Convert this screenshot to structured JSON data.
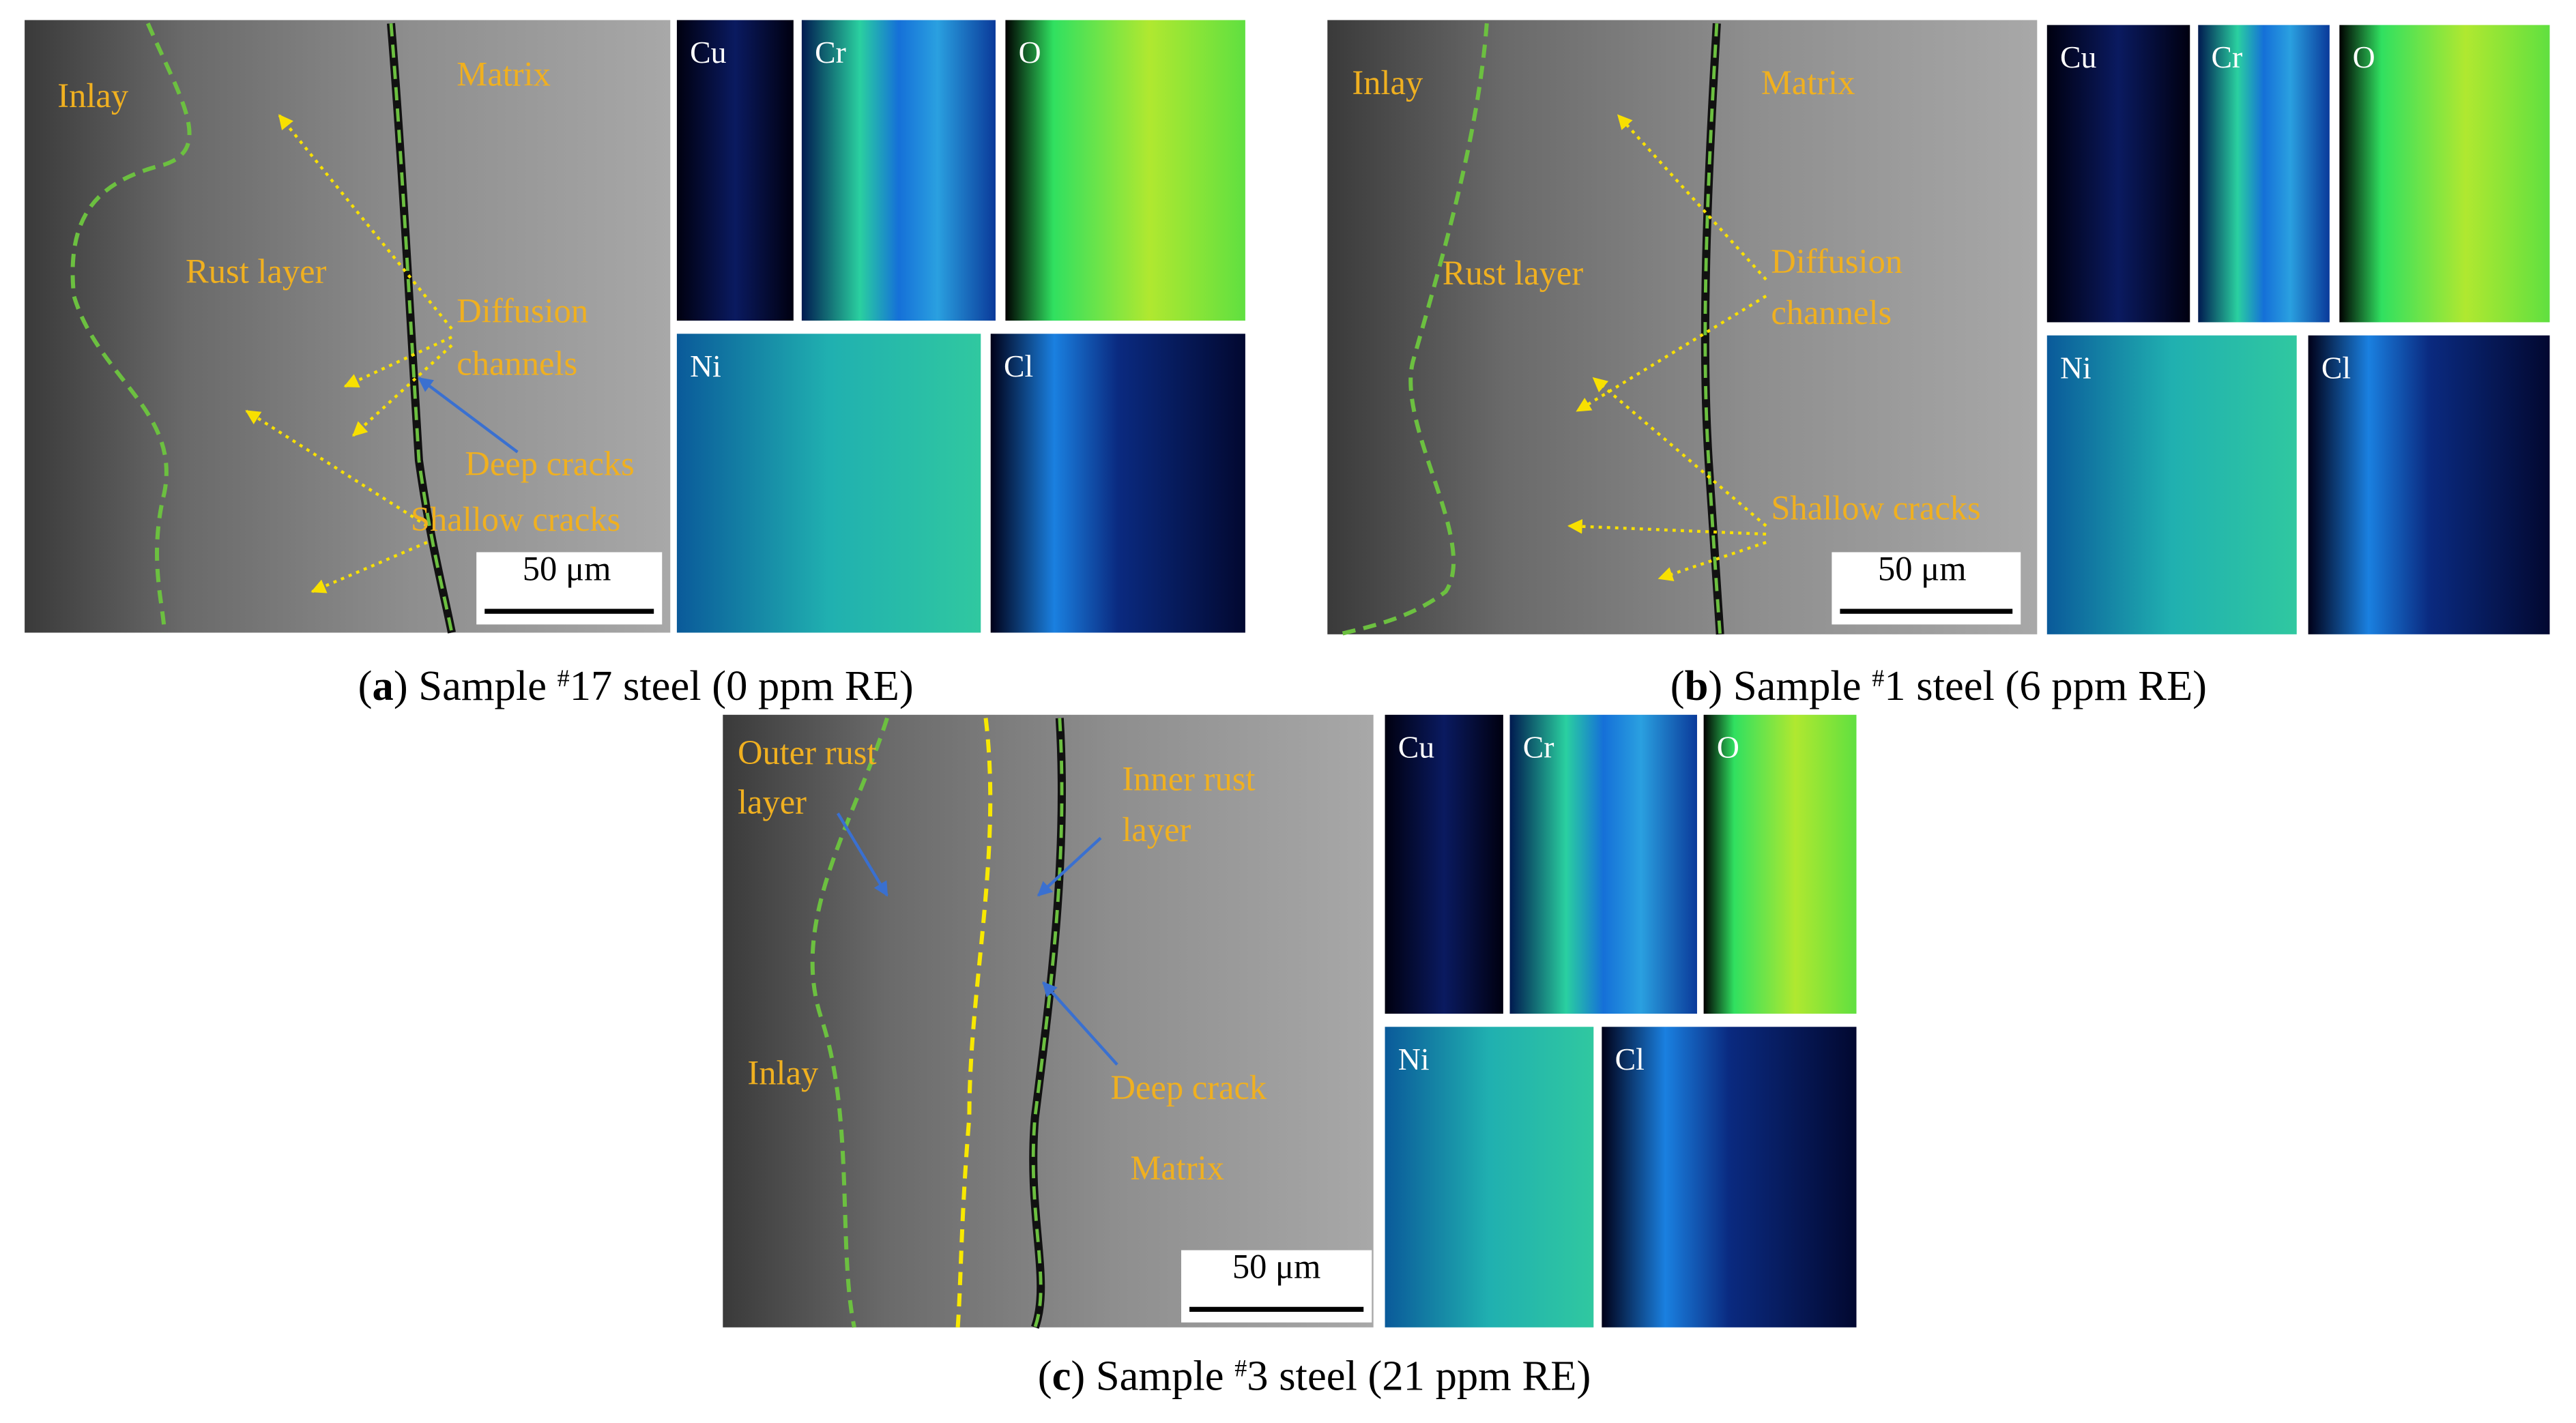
{
  "panels": [
    {
      "labels": [
        "Inlay",
        "Matrix",
        "Rust layer",
        "Diffusion",
        "channels",
        "Deep cracks",
        "Shallow cracks"
      ],
      "maps": [
        "Cu",
        "Cr",
        "O",
        "Ni",
        "Cl"
      ],
      "scale_bar": "50 μm",
      "caption": [
        "(",
        "a",
        ") Sample ",
        "#",
        "17 steel (0 ppm RE)"
      ]
    },
    {
      "labels": [
        "Inlay",
        "Matrix",
        "Rust layer",
        "Diffusion",
        "channels",
        "Shallow cracks"
      ],
      "maps": [
        "Cu",
        "Cr",
        "O",
        "Ni",
        "Cl"
      ],
      "scale_bar": "50 μm",
      "caption": [
        "(",
        "b",
        ") Sample ",
        "#",
        "1 steel (6 ppm RE)"
      ]
    },
    {
      "labels": [
        "Outer rust",
        "layer",
        "Inner rust",
        "layer",
        "Inlay",
        "Deep crack",
        "Matrix"
      ],
      "maps": [
        "Cu",
        "Cr",
        "O",
        "Ni",
        "Cl"
      ],
      "scale_bar": "50 μm",
      "caption": [
        "(",
        "c",
        ") Sample ",
        "#",
        "3 steel (21 ppm RE)"
      ]
    }
  ]
}
